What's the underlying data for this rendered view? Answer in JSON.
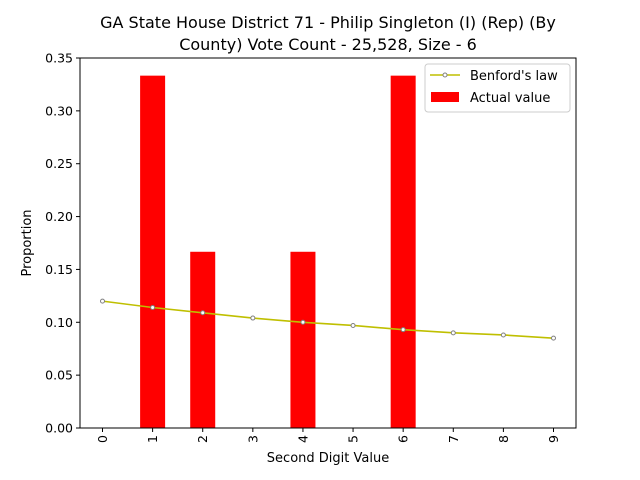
{
  "chart_data": {
    "type": "bar",
    "title_lines": [
      "GA State House District 71 - Philip Singleton (I) (Rep) (By",
      "County) Vote Count - 25,528, Size - 6"
    ],
    "xlabel": "Second Digit Value",
    "ylabel": "Proportion",
    "categories": [
      "0",
      "1",
      "2",
      "3",
      "4",
      "5",
      "6",
      "7",
      "8",
      "9"
    ],
    "ylim": [
      0,
      0.35
    ],
    "yticks": [
      0.0,
      0.05,
      0.1,
      0.15,
      0.2,
      0.25,
      0.3,
      0.35
    ],
    "ytick_labels": [
      "0.00",
      "0.05",
      "0.10",
      "0.15",
      "0.20",
      "0.25",
      "0.30",
      "0.35"
    ],
    "legend_position": "top-right",
    "grid": false,
    "series": [
      {
        "name": "Benford's law",
        "kind": "line",
        "color": "#bfbf00",
        "marker_color": "#808080",
        "values": [
          0.12,
          0.114,
          0.109,
          0.104,
          0.1,
          0.097,
          0.093,
          0.09,
          0.088,
          0.085
        ]
      },
      {
        "name": "Actual value",
        "kind": "bar",
        "color": "#ff0000",
        "values": [
          0,
          0.3333,
          0.1667,
          0,
          0.1667,
          0,
          0.3333,
          0,
          0,
          0
        ]
      }
    ]
  }
}
